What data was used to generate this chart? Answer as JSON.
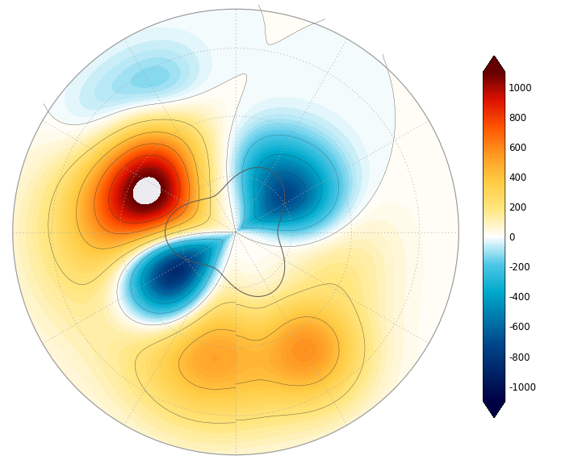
{
  "background_color": "#ebebf0",
  "land_color": "#ffffff",
  "coastline_color": "#555555",
  "coastline_linewidth": 0.7,
  "grid_color": "#aaaaaa",
  "cmap_colors_pos": [
    [
      0.0,
      "#ffffff"
    ],
    [
      0.091,
      "#fffacc"
    ],
    [
      0.182,
      "#ffe680"
    ],
    [
      0.273,
      "#ffcc44"
    ],
    [
      0.364,
      "#ff9922"
    ],
    [
      0.455,
      "#ff5500"
    ],
    [
      0.546,
      "#dd1100"
    ],
    [
      0.637,
      "#aa0000"
    ],
    [
      1.0,
      "#660000"
    ]
  ],
  "cmap_colors_neg": [
    [
      0.0,
      "#ffffff"
    ],
    [
      0.091,
      "#daf0f8"
    ],
    [
      0.182,
      "#a0dcf0"
    ],
    [
      0.273,
      "#50c8e8"
    ],
    [
      0.364,
      "#00aacc"
    ],
    [
      0.455,
      "#0077aa"
    ],
    [
      0.546,
      "#004488"
    ],
    [
      0.637,
      "#002266"
    ],
    [
      1.0,
      "#000044"
    ]
  ],
  "vmin": -1100,
  "vmax": 1100,
  "colorbar_ticks": [
    -1000,
    -800,
    -600,
    -400,
    -200,
    0,
    200,
    400,
    600,
    800,
    1000
  ],
  "anomaly_centers": [
    {
      "lon": -63,
      "lat": -57,
      "val": 1050,
      "lons": 24,
      "lats": 12
    },
    {
      "lon": -93,
      "lat": -46,
      "val": 320,
      "lons": 28,
      "lats": 15
    },
    {
      "lon": 148,
      "lat": -42,
      "val": 450,
      "lons": 13,
      "lats": 11
    },
    {
      "lon": -122,
      "lat": -63,
      "val": -1050,
      "lons": 19,
      "lats": 12
    },
    {
      "lon": 57,
      "lat": -68,
      "val": -720,
      "lons": 21,
      "lats": 12
    },
    {
      "lon": 22,
      "lat": -67,
      "val": -280,
      "lons": 16,
      "lats": 10
    },
    {
      "lon": -168,
      "lat": -47,
      "val": 520,
      "lons": 22,
      "lats": 14
    },
    {
      "lon": 115,
      "lat": -52,
      "val": 180,
      "lons": 28,
      "lats": 12
    },
    {
      "lon": -28,
      "lat": -36,
      "val": -180,
      "lons": 11,
      "lats": 8
    },
    {
      "lon": -50,
      "lat": -32,
      "val": -150,
      "lons": 12,
      "lats": 8
    }
  ]
}
